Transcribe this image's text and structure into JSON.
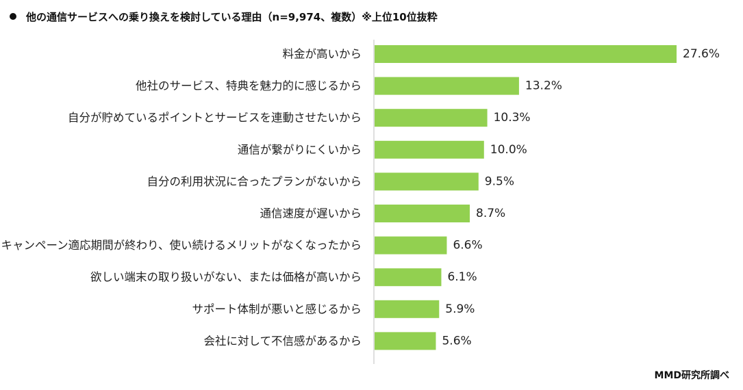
{
  "header": {
    "title": "他の通信サービスへの乗り換えを検討している理由（n=9,974、複数）※上位10位抜粋"
  },
  "footer": {
    "source": "MMD研究所調べ"
  },
  "colors": {
    "bar": "#92D050",
    "axis": "#BFBFBF"
  },
  "chart_data": {
    "type": "bar",
    "orientation": "horizontal",
    "title": "他の通信サービスへの乗り換えを検討している理由（n=9,974、複数）※上位10位抜粋",
    "categories": [
      "料金が高いから",
      "他社のサービス、特典を魅力的に感じるから",
      "自分が貯めているポイントとサービスを連動させたいから",
      "通信が繋がりにくいから",
      "自分の利用状況に合ったプランがないから",
      "通信速度が遅いから",
      "キャンペーン適応期間が終わり、使い続けるメリットがなくなったから",
      "欲しい端末の取り扱いがない、または価格が高いから",
      "サポート体制が悪いと感じるから",
      "会社に対して不信感があるから"
    ],
    "values": [
      27.6,
      13.2,
      10.3,
      10.0,
      9.5,
      8.7,
      6.6,
      6.1,
      5.9,
      5.6
    ],
    "value_labels": [
      "27.6%",
      "13.2%",
      "10.3%",
      "10.0%",
      "9.5%",
      "8.7%",
      "6.6%",
      "6.1%",
      "5.9%",
      "5.6%"
    ],
    "xlim": [
      0,
      27.6
    ],
    "grid": false,
    "legend": "none"
  }
}
